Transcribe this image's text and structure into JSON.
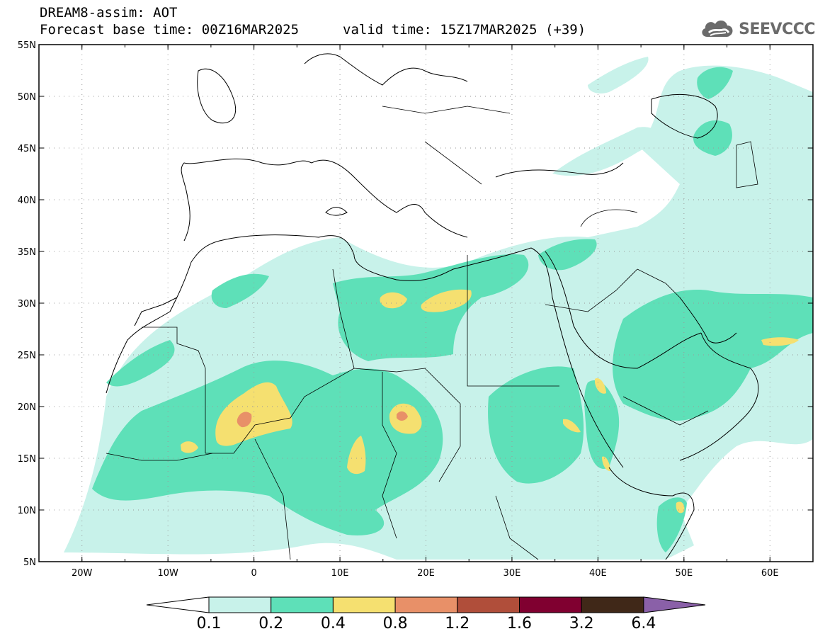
{
  "header": {
    "line1": "DREAM8-assim: AOT",
    "line2": "Forecast base time: 00Z16MAR2025",
    "valid": "valid time: 15Z17MAR2025 (+39)",
    "logo_text": "SEEVCCC",
    "logo_icon": "cloud-icon"
  },
  "map": {
    "lon_range": [
      -25,
      65
    ],
    "lat_range": [
      5,
      55
    ],
    "lon_ticks": [
      {
        "v": -20,
        "label": "20W"
      },
      {
        "v": -10,
        "label": "10W"
      },
      {
        "v": 0,
        "label": "0"
      },
      {
        "v": 10,
        "label": "10E"
      },
      {
        "v": 20,
        "label": "20E"
      },
      {
        "v": 30,
        "label": "30E"
      },
      {
        "v": 40,
        "label": "40E"
      },
      {
        "v": 50,
        "label": "50E"
      },
      {
        "v": 60,
        "label": "60E"
      }
    ],
    "lat_ticks": [
      {
        "v": 5,
        "label": "5N"
      },
      {
        "v": 10,
        "label": "10N"
      },
      {
        "v": 15,
        "label": "15N"
      },
      {
        "v": 20,
        "label": "20N"
      },
      {
        "v": 25,
        "label": "25N"
      },
      {
        "v": 30,
        "label": "30N"
      },
      {
        "v": 35,
        "label": "35N"
      },
      {
        "v": 40,
        "label": "40N"
      },
      {
        "v": 45,
        "label": "45N"
      },
      {
        "v": 50,
        "label": "50N"
      },
      {
        "v": 55,
        "label": "55N"
      }
    ]
  },
  "colorbar": {
    "levels": [
      "0.1",
      "0.2",
      "0.4",
      "0.8",
      "1.2",
      "1.6",
      "3.2",
      "6.4"
    ],
    "colors": [
      "#c8f2ea",
      "#5ee0b8",
      "#f5e070",
      "#e89068",
      "#b04e3a",
      "#800030",
      "#402818",
      "#8a60a8"
    ]
  }
}
